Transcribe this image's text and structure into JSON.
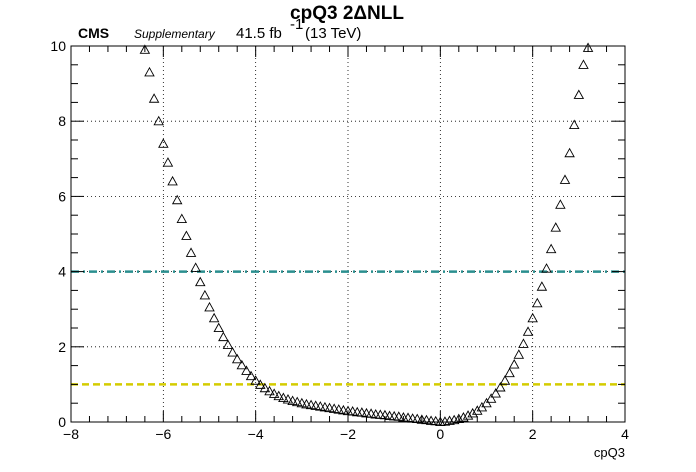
{
  "header": {
    "title": "cpQ3 2ΔNLL",
    "experiment": "CMS",
    "status": "Supplementary",
    "luminosity": "41.5 fb",
    "lumi_exponent": "-1",
    "energy": "(13 TeV)"
  },
  "chart_data": {
    "type": "scatter",
    "title": "cpQ3 2ΔNLL",
    "xlabel": "cpQ3",
    "ylabel": "",
    "xlim": [
      -8,
      4
    ],
    "ylim": [
      0,
      10
    ],
    "grid": true,
    "marker": "open-triangle",
    "xticks": [
      "-8",
      "-6",
      "-4",
      "-2",
      "0",
      "2",
      "4"
    ],
    "yticks": [
      "0",
      "2",
      "4",
      "6",
      "8",
      "10"
    ],
    "reference_lines": [
      {
        "y": 4,
        "color": "#2a8f8f",
        "style": "dash-dot"
      },
      {
        "y": 1,
        "color": "#d4cc00",
        "style": "dashed"
      }
    ],
    "points": [
      [
        -6.4,
        9.9
      ],
      [
        -6.3,
        9.3
      ],
      [
        -6.2,
        8.6
      ],
      [
        -6.1,
        8.0
      ],
      [
        -6.0,
        7.4
      ],
      [
        -5.9,
        6.9
      ],
      [
        -5.8,
        6.4
      ],
      [
        -5.7,
        5.9
      ],
      [
        -5.6,
        5.4
      ],
      [
        -5.5,
        4.95
      ],
      [
        -5.4,
        4.5
      ],
      [
        -5.3,
        4.1
      ],
      [
        -5.2,
        3.72
      ],
      [
        -5.1,
        3.37
      ],
      [
        -5.0,
        3.05
      ],
      [
        -4.9,
        2.76
      ],
      [
        -4.8,
        2.5
      ],
      [
        -4.7,
        2.26
      ],
      [
        -4.6,
        2.05
      ],
      [
        -4.5,
        1.85
      ],
      [
        -4.4,
        1.67
      ],
      [
        -4.3,
        1.51
      ],
      [
        -4.2,
        1.36
      ],
      [
        -4.1,
        1.22
      ],
      [
        -4.0,
        1.1
      ],
      [
        -3.9,
        0.99
      ],
      [
        -3.8,
        0.9
      ],
      [
        -3.7,
        0.82
      ],
      [
        -3.6,
        0.75
      ],
      [
        -3.5,
        0.69
      ],
      [
        -3.4,
        0.64
      ],
      [
        -3.3,
        0.6
      ],
      [
        -3.2,
        0.56
      ],
      [
        -3.1,
        0.53
      ],
      [
        -3.0,
        0.5
      ],
      [
        -2.9,
        0.47
      ],
      [
        -2.8,
        0.45
      ],
      [
        -2.7,
        0.43
      ],
      [
        -2.6,
        0.41
      ],
      [
        -2.5,
        0.39
      ],
      [
        -2.4,
        0.37
      ],
      [
        -2.3,
        0.35
      ],
      [
        -2.2,
        0.33
      ],
      [
        -2.1,
        0.31
      ],
      [
        -2.0,
        0.29
      ],
      [
        -1.9,
        0.28
      ],
      [
        -1.8,
        0.26
      ],
      [
        -1.7,
        0.25
      ],
      [
        -1.6,
        0.23
      ],
      [
        -1.5,
        0.22
      ],
      [
        -1.4,
        0.2
      ],
      [
        -1.3,
        0.19
      ],
      [
        -1.2,
        0.18
      ],
      [
        -1.1,
        0.16
      ],
      [
        -1.0,
        0.15
      ],
      [
        -0.9,
        0.14
      ],
      [
        -0.8,
        0.12
      ],
      [
        -0.7,
        0.11
      ],
      [
        -0.6,
        0.09
      ],
      [
        -0.5,
        0.08
      ],
      [
        -0.4,
        0.06
      ],
      [
        -0.3,
        0.05
      ],
      [
        -0.2,
        0.03
      ],
      [
        -0.1,
        0.02
      ],
      [
        0.0,
        0.0
      ],
      [
        0.1,
        0.01
      ],
      [
        0.2,
        0.03
      ],
      [
        0.3,
        0.05
      ],
      [
        0.4,
        0.08
      ],
      [
        0.5,
        0.12
      ],
      [
        0.6,
        0.17
      ],
      [
        0.7,
        0.23
      ],
      [
        0.8,
        0.3
      ],
      [
        0.9,
        0.39
      ],
      [
        1.0,
        0.5
      ],
      [
        1.1,
        0.62
      ],
      [
        1.2,
        0.76
      ],
      [
        1.3,
        0.92
      ],
      [
        1.4,
        1.1
      ],
      [
        1.5,
        1.3
      ],
      [
        1.6,
        1.53
      ],
      [
        1.7,
        1.79
      ],
      [
        1.8,
        2.08
      ],
      [
        1.9,
        2.4
      ],
      [
        2.0,
        2.76
      ],
      [
        2.1,
        3.16
      ],
      [
        2.2,
        3.6
      ],
      [
        2.3,
        4.08
      ],
      [
        2.4,
        4.6
      ],
      [
        2.5,
        5.17
      ],
      [
        2.6,
        5.78
      ],
      [
        2.7,
        6.44
      ],
      [
        2.8,
        7.15
      ],
      [
        2.9,
        7.9
      ],
      [
        3.0,
        8.7
      ],
      [
        3.1,
        9.5
      ],
      [
        3.2,
        9.95
      ]
    ]
  }
}
